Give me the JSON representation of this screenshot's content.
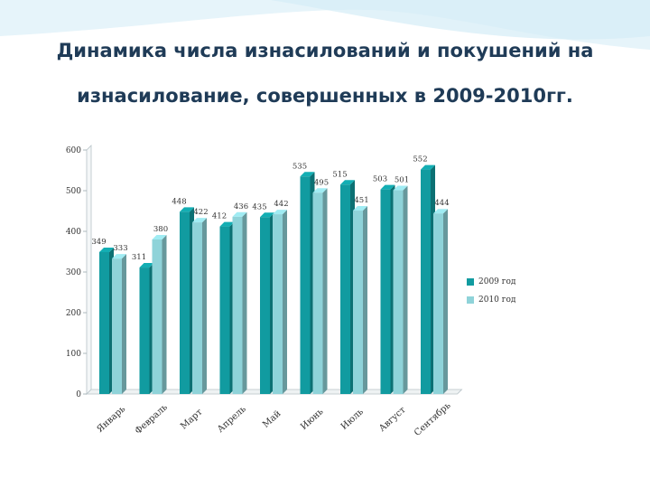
{
  "title": {
    "line1": "Динамика числа изнасилований и покушений на",
    "line2": "изнасилование, совершенных в 2009-2010гг."
  },
  "colors": {
    "series_2009": "#119ba0",
    "series_2010": "#8fd3d9",
    "title": "#1f3b57",
    "slide_wave": "#dff1f8"
  },
  "chart_data": {
    "type": "bar",
    "categories": [
      "Январь",
      "Февраль",
      "Март",
      "Апрель",
      "Май",
      "Июнь",
      "Июль",
      "Август",
      "Сентябрь"
    ],
    "series": [
      {
        "name": "2009 год",
        "values": [
          349,
          311,
          448,
          412,
          435,
          535,
          515,
          503,
          552
        ]
      },
      {
        "name": "2010 год",
        "values": [
          333,
          380,
          422,
          436,
          442,
          495,
          451,
          501,
          444
        ]
      }
    ],
    "ylim": [
      0,
      600
    ],
    "yticks": [
      0,
      100,
      200,
      300,
      400,
      500,
      600
    ],
    "data_labels": {
      "2009 год": [
        "349",
        "311",
        "448",
        "412",
        "435",
        "535",
        "515",
        "503",
        "552"
      ],
      "2010 год": [
        "333",
        "380",
        "422",
        "436",
        "442",
        "495",
        "451",
        "501",
        "444"
      ]
    },
    "legend": "right",
    "grid": false
  }
}
